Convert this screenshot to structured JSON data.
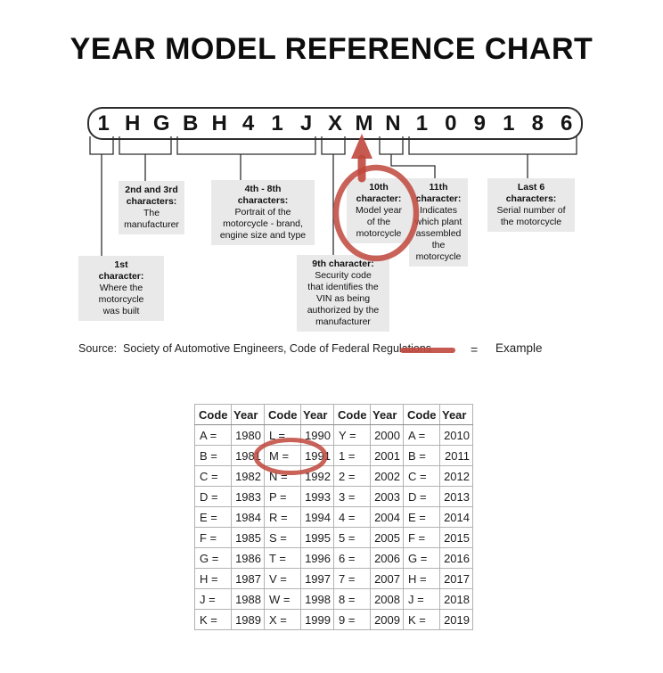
{
  "title": "YEAR MODEL REFERENCE CHART",
  "vin": {
    "characters": [
      "1",
      "H",
      "G",
      "B",
      "H",
      "4",
      "1",
      "J",
      "X",
      "M",
      "N",
      "1",
      "0",
      "9",
      "1",
      "8",
      "6"
    ]
  },
  "callouts": [
    {
      "heading": "1st\ncharacter:",
      "body": "Where the\nmotorcycle\nwas built"
    },
    {
      "heading": "2nd and 3rd\ncharacters:",
      "body": "The\nmanufacturer"
    },
    {
      "heading": "4th - 8th\ncharacters:",
      "body": "Portrait of the\nmotorcycle - brand,\nengine size and type"
    },
    {
      "heading": "9th character:",
      "body": "Security code\nthat identifies the\nVIN as being\nauthorized by the\nmanufacturer"
    },
    {
      "heading": "10th\ncharacter:",
      "body": "Model year\nof the\nmotorcycle"
    },
    {
      "heading": "11th\ncharacter:",
      "body": "Indicates\nwhich plant\nassembled\nthe\nmotorcycle"
    },
    {
      "heading": "Last 6\ncharacters:",
      "body": "Serial number of\nthe motorcycle"
    }
  ],
  "source_text": "Source:  Society of Automotive Engineers, Code of Federal Regulations",
  "legend": {
    "equals_sign": "=",
    "label": "Example"
  },
  "colors": {
    "example_red": "#c0483d",
    "callout_bg": "#e9e9e9"
  },
  "year_table": {
    "headers": [
      "Code",
      "Year",
      "Code",
      "Year",
      "Code",
      "Year",
      "Code",
      "Year"
    ],
    "rows": [
      [
        "A =",
        "1980",
        "L =",
        "1990",
        "Y =",
        "2000",
        "A =",
        "2010"
      ],
      [
        "B =",
        "1981",
        "M =",
        "1991",
        "1 =",
        "2001",
        "B =",
        "2011"
      ],
      [
        "C =",
        "1982",
        "N =",
        "1992",
        "2 =",
        "2002",
        "C =",
        "2012"
      ],
      [
        "D =",
        "1983",
        "P =",
        "1993",
        "3 =",
        "2003",
        "D =",
        "2013"
      ],
      [
        "E =",
        "1984",
        "R =",
        "1994",
        "4 =",
        "2004",
        "E =",
        "2014"
      ],
      [
        "F =",
        "1985",
        "S =",
        "1995",
        "5 =",
        "2005",
        "F =",
        "2015"
      ],
      [
        "G =",
        "1986",
        "T =",
        "1996",
        "6 =",
        "2006",
        "G =",
        "2016"
      ],
      [
        "H =",
        "1987",
        "V =",
        "1997",
        "7 =",
        "2007",
        "H =",
        "2017"
      ],
      [
        "J =",
        "1988",
        "W =",
        "1998",
        "8 =",
        "2008",
        "J =",
        "2018"
      ],
      [
        "K =",
        "1989",
        "X =",
        "1999",
        "9 =",
        "2009",
        "K =",
        "2019"
      ]
    ]
  }
}
